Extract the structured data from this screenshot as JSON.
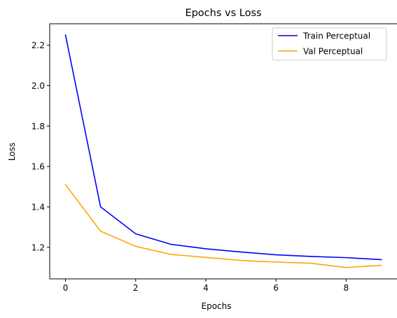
{
  "chart_data": {
    "type": "line",
    "title": "Epochs vs Loss",
    "xlabel": "Epochs",
    "ylabel": "Loss",
    "x": [
      0,
      1,
      2,
      3,
      4,
      5,
      6,
      7,
      8,
      9
    ],
    "xlim": [
      -0.45,
      9.45
    ],
    "ylim": [
      1.044,
      2.306
    ],
    "xticks": [
      0,
      2,
      4,
      6,
      8
    ],
    "xtick_labels": [
      "0",
      "2",
      "4",
      "6",
      "8"
    ],
    "yticks": [
      1.2,
      1.4,
      1.6,
      1.8,
      2.0,
      2.2
    ],
    "ytick_labels": [
      "1.2",
      "1.4",
      "1.6",
      "1.8",
      "2.0",
      "2.2"
    ],
    "grid": false,
    "legend_position": "top-right",
    "series": [
      {
        "name": "Train Perceptual",
        "color": "#0000ff",
        "values": [
          2.25,
          1.4,
          1.267,
          1.215,
          1.193,
          1.177,
          1.163,
          1.155,
          1.149,
          1.139
        ]
      },
      {
        "name": "Val Perceptual",
        "color": "#ffa500",
        "values": [
          1.51,
          1.28,
          1.205,
          1.165,
          1.15,
          1.135,
          1.127,
          1.121,
          1.1,
          1.111
        ]
      }
    ]
  }
}
